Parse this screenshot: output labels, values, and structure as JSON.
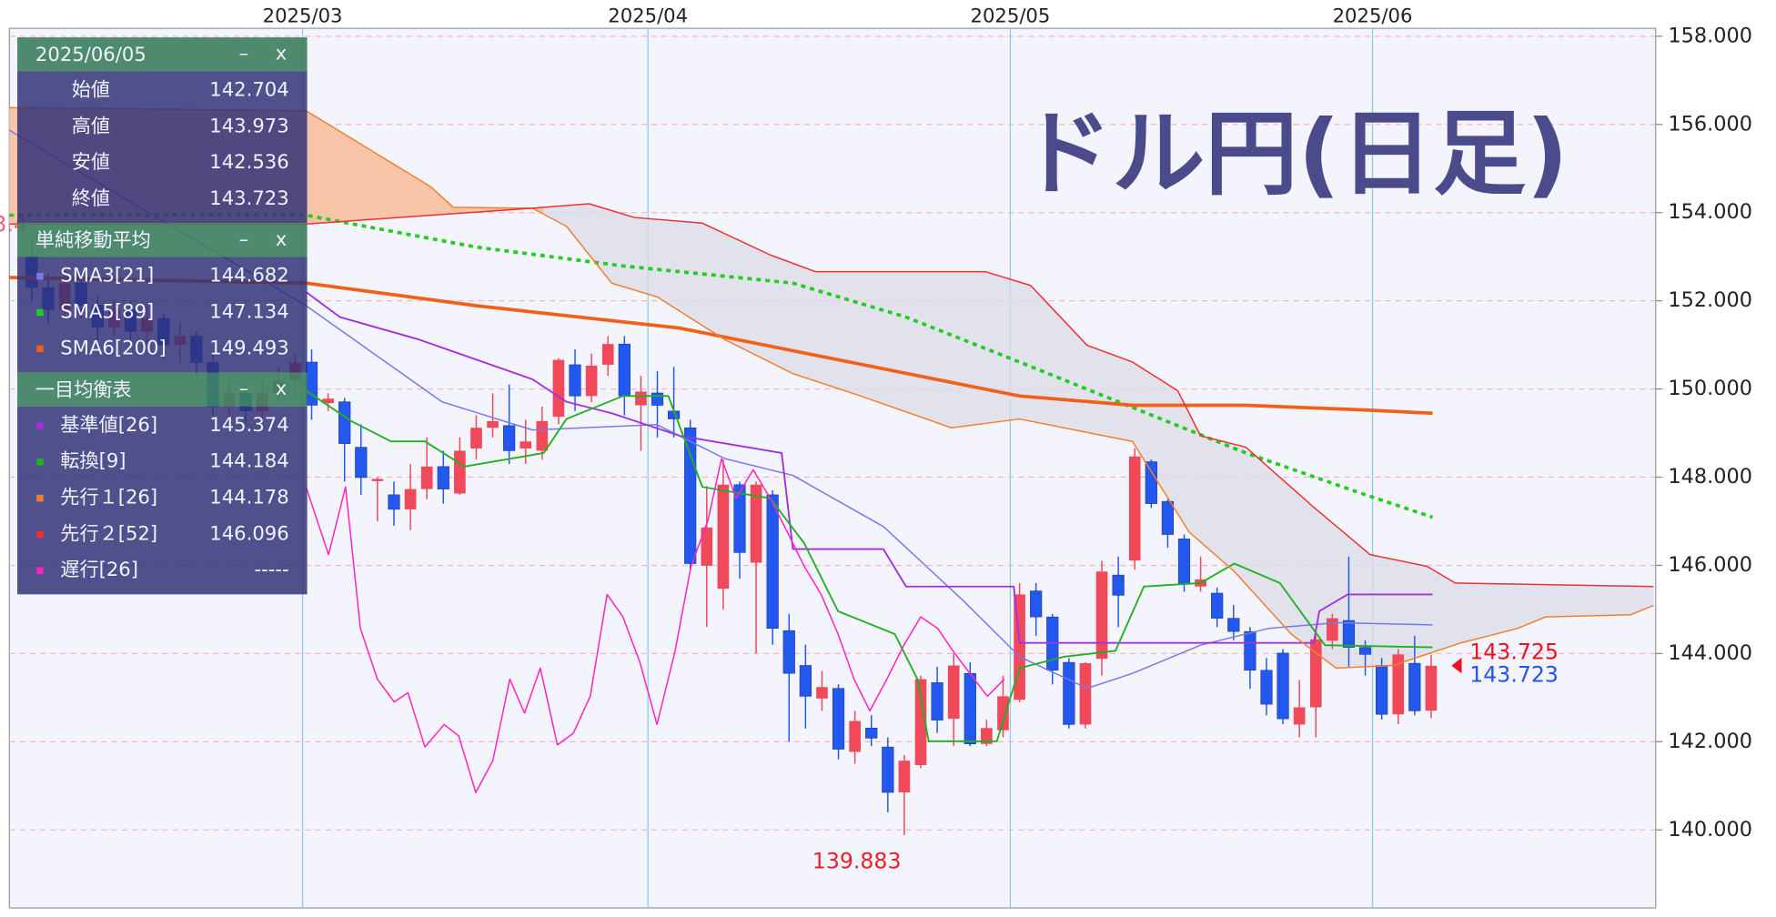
{
  "chart_data": {
    "type": "candlestick",
    "title": "ドル円(日足)",
    "selected_date": "2025/06/05",
    "panel_controls": {
      "minimize": "–",
      "close": "x"
    },
    "ohlc_labels": {
      "open": "始値",
      "high": "高値",
      "low": "安値",
      "close": "終値"
    },
    "xlim": [
      -1.36,
      98.64
    ],
    "xticks": [
      {
        "value": 16.45,
        "label": "2025/03"
      },
      {
        "value": 37.43,
        "label": "2025/04"
      },
      {
        "value": 59.44,
        "label": "2025/05"
      },
      {
        "value": 81.44,
        "label": "2025/06"
      }
    ],
    "ylim": [
      138.23,
      158.18
    ],
    "yticks": [
      {
        "value": 140,
        "label": "140.000"
      },
      {
        "value": 142,
        "label": "142.000"
      },
      {
        "value": 144,
        "label": "144.000"
      },
      {
        "value": 146,
        "label": "146.000"
      },
      {
        "value": 148,
        "label": "148.000"
      },
      {
        "value": 150,
        "label": "150.000"
      },
      {
        "value": 152,
        "label": "152.000"
      },
      {
        "value": 154,
        "label": "154.000"
      },
      {
        "value": 156,
        "label": "156.000"
      },
      {
        "value": 158,
        "label": "158.000"
      }
    ],
    "grid": true,
    "up_color": "#f04a5a",
    "down_color": "#2258ee",
    "open": [
      153.0,
      152.3,
      151.8,
      152.4,
      151.9,
      151.4,
      151.8,
      151.3,
      151.6,
      151.0,
      151.2,
      150.6,
      149.6,
      149.9,
      149.5,
      149.9,
      150.2,
      150.61,
      149.68,
      149.71,
      148.68,
      147.91,
      147.6,
      147.27,
      147.73,
      148.24,
      147.63,
      148.65,
      149.12,
      149.17,
      148.65,
      148.6,
      149.37,
      150.55,
      149.84,
      150.55,
      151.02,
      149.63,
      149.91,
      149.5,
      149.12,
      145.99,
      145.47,
      147.83,
      146.06,
      147.6,
      144.52,
      143.73,
      142.98,
      143.21,
      141.77,
      142.31,
      141.88,
      140.85,
      141.47,
      143.34,
      142.52,
      143.55,
      141.95,
      142.26,
      142.95,
      145.42,
      144.83,
      143.8,
      142.39,
      143.88,
      145.78,
      146.11,
      148.35,
      147.45,
      146.6,
      145.52,
      145.37,
      144.8,
      144.5,
      143.62,
      144.01,
      142.39,
      142.78,
      144.29,
      144.75,
      144.14,
      143.73,
      142.62,
      143.78,
      142.704
    ],
    "high": [
      153.4,
      152.6,
      152.7,
      152.6,
      152.1,
      152.0,
      152.0,
      151.9,
      151.7,
      151.5,
      151.3,
      150.8,
      150.2,
      150.1,
      150.2,
      150.5,
      150.8,
      150.9,
      149.9,
      149.8,
      149.2,
      148.0,
      147.9,
      148.3,
      148.9,
      148.6,
      148.9,
      149.4,
      149.9,
      150.1,
      149.3,
      149.6,
      150.7,
      150.9,
      150.8,
      151.2,
      151.2,
      150.3,
      150.4,
      150.5,
      149.3,
      147.8,
      148.4,
      147.9,
      147.9,
      147.7,
      144.9,
      144.2,
      143.6,
      143.3,
      142.7,
      142.6,
      142.1,
      141.7,
      143.5,
      143.7,
      144.0,
      143.8,
      142.5,
      143.5,
      145.6,
      145.6,
      144.9,
      143.9,
      143.8,
      146.1,
      146.2,
      148.652,
      148.4,
      147.5,
      146.7,
      146.2,
      145.5,
      145.1,
      144.6,
      143.9,
      144.1,
      143.4,
      144.4,
      144.9,
      146.2,
      144.3,
      143.9,
      144.1,
      144.4,
      143.973
    ],
    "low": [
      152.0,
      151.5,
      151.6,
      151.6,
      151.1,
      151.2,
      151.0,
      151.0,
      150.7,
      150.6,
      150.3,
      149.4,
      149.3,
      149.2,
      149.3,
      149.7,
      150.0,
      149.3,
      149.5,
      147.9,
      147.6,
      147.0,
      146.9,
      146.8,
      147.5,
      147.4,
      147.6,
      148.4,
      148.9,
      148.3,
      148.3,
      148.4,
      149.2,
      149.5,
      149.7,
      150.3,
      149.4,
      148.6,
      148.9,
      148.9,
      145.9,
      144.6,
      145.0,
      145.7,
      144.0,
      144.2,
      142.0,
      142.3,
      142.7,
      141.6,
      141.5,
      141.9,
      140.4,
      139.883,
      141.4,
      142.2,
      141.9,
      141.9,
      141.9,
      142.1,
      142.9,
      144.4,
      143.3,
      142.3,
      142.3,
      143.5,
      144.6,
      145.9,
      147.3,
      146.4,
      145.4,
      145.4,
      144.6,
      144.3,
      143.2,
      142.6,
      142.4,
      142.1,
      142.1,
      144.1,
      143.7,
      143.5,
      142.5,
      142.4,
      142.6,
      142.536
    ],
    "close": [
      152.3,
      151.8,
      152.4,
      151.9,
      151.4,
      151.8,
      151.3,
      151.6,
      151.0,
      151.2,
      150.6,
      149.6,
      149.9,
      149.5,
      149.9,
      150.2,
      150.6,
      149.63,
      149.78,
      148.76,
      147.99,
      147.96,
      147.27,
      147.73,
      148.24,
      147.73,
      148.6,
      149.12,
      149.27,
      148.6,
      148.81,
      149.27,
      150.66,
      149.84,
      150.53,
      151.02,
      149.84,
      149.94,
      149.63,
      149.32,
      146.04,
      146.86,
      147.83,
      146.29,
      147.83,
      144.57,
      143.55,
      143.03,
      143.24,
      141.83,
      142.47,
      142.08,
      140.85,
      141.57,
      143.42,
      142.49,
      143.73,
      141.95,
      142.31,
      143.03,
      145.34,
      144.83,
      143.62,
      142.39,
      143.78,
      145.86,
      145.32,
      148.47,
      147.4,
      146.7,
      145.57,
      145.68,
      144.8,
      144.5,
      143.62,
      142.85,
      142.52,
      142.78,
      144.32,
      144.8,
      144.14,
      143.98,
      142.62,
      143.98,
      142.7,
      143.723
    ],
    "high_label_color": "#f06474",
    "low_label_color": "#e8202e",
    "current_price": 143.725,
    "current_color": "#ee1122",
    "close_label_color": "#2255ee",
    "cloud_colors": {
      "bullish": "#f8c4a8",
      "bearish": "#dcdce8"
    },
    "indicator_groups": [
      {
        "title": "単純移動平均",
        "series": [
          {
            "name": "SMA3[21]",
            "color": "#7878ee",
            "width": 1.2,
            "legend_value": 144.682,
            "x": [
              -1.36,
              16.66,
              24.91,
              30.41,
              37.98,
              42.1,
              46.23,
              51.73,
              56.55,
              60.0,
              64.11,
              66.86,
              70.99,
              75.12,
              79.24,
              85.09
            ],
            "values": [
              155.87,
              151.89,
              149.71,
              149.07,
              149.19,
              148.42,
              148.04,
              146.88,
              145.21,
              143.93,
              143.21,
              143.55,
              144.19,
              144.57,
              144.7,
              144.65
            ]
          },
          {
            "name": "SMA5[89]",
            "color": "#22cc22",
            "width": 3,
            "dash": true,
            "legend_value": 147.134,
            "x": [
              -1.36,
              16.66,
              26.97,
              35.91,
              46.23,
              53.11,
              60.0,
              66.86,
              73.74,
              80.62,
              85.09
            ],
            "values": [
              153.94,
              153.94,
              153.22,
              152.79,
              152.4,
              151.63,
              150.61,
              149.58,
              148.55,
              147.65,
              147.09
            ]
          },
          {
            "name": "SMA6[200]",
            "color": "#f06018",
            "width": 3,
            "legend_value": 149.493,
            "x": [
              -1.36,
              16.66,
              26.97,
              39.35,
              49.67,
              60.0,
              66.86,
              73.74,
              80.62,
              85.09
            ],
            "values": [
              152.53,
              152.4,
              151.89,
              151.38,
              150.61,
              149.84,
              149.63,
              149.63,
              149.53,
              149.45
            ]
          }
        ]
      },
      {
        "title": "一目均衡表",
        "series": [
          {
            "name": "基準値[26]",
            "color": "#a030e0",
            "width": 1.5,
            "legend_value": 145.374,
            "x": [
              16.66,
              18.72,
              23.54,
              30.41,
              32.48,
              35.23,
              39.35,
              45.55,
              46.23,
              51.73,
              53.11,
              59.65,
              60.0,
              66.86,
              77.87,
              78.21,
              79.93,
              85.09
            ],
            "values": [
              152.2,
              151.63,
              151.12,
              150.22,
              149.71,
              149.45,
              148.94,
              148.55,
              146.37,
              146.37,
              145.52,
              145.52,
              144.24,
              144.24,
              144.24,
              144.96,
              145.34,
              145.34
            ]
          },
          {
            "name": "転換[9]",
            "color": "#20b020",
            "width": 1.5,
            "legend_value": 144.184,
            "x": [
              16.66,
              19.41,
              21.82,
              23.88,
              26.29,
              31.1,
              32.48,
              35.91,
              38.67,
              40.73,
              44.86,
              46.92,
              48.98,
              52.42,
              53.8,
              54.48,
              58.62,
              60.0,
              62.74,
              65.83,
              67.55,
              70.99,
              73.05,
              75.81,
              78.55,
              85.09
            ],
            "values": [
              149.96,
              149.27,
              148.81,
              148.81,
              148.24,
              148.55,
              149.32,
              149.84,
              149.84,
              147.78,
              147.52,
              146.5,
              144.96,
              144.44,
              143.42,
              142.01,
              142.01,
              143.67,
              143.93,
              144.06,
              145.52,
              145.6,
              146.04,
              145.6,
              144.19,
              144.14
            ]
          },
          {
            "name": "先行１[26]",
            "color": "#f08030",
            "width": 1.2,
            "cloud_edge": true,
            "legend_value": 144.178,
            "x": [
              -1.36,
              16.66,
              24.22,
              25.6,
              30.41,
              32.48,
              35.23,
              37.98,
              42.1,
              46.23,
              50.36,
              55.86,
              60.0,
              66.86,
              70.3,
              73.05,
              76.5,
              79.24,
              82.68,
              86.81,
              90.25,
              91.97,
              97.13,
              98.5
            ],
            "values": [
              156.38,
              156.31,
              154.59,
              154.12,
              154.1,
              153.69,
              152.4,
              152.09,
              151.12,
              150.35,
              149.84,
              149.12,
              149.32,
              148.81,
              146.76,
              145.86,
              144.44,
              143.67,
              143.73,
              144.24,
              144.57,
              144.83,
              144.88,
              145.09
            ]
          },
          {
            "name": "先行２[52]",
            "color": "#f03030",
            "width": 1.2,
            "cloud_edge": true,
            "legend_value": 146.096,
            "x": [
              -1.36,
              16.66,
              30.41,
              33.85,
              36.6,
              40.73,
              44.86,
              47.61,
              57.93,
              60.67,
              64.11,
              66.86,
              69.61,
              70.99,
              73.74,
              77.87,
              81.31,
              84.75,
              86.47,
              98.5
            ],
            "values": [
              153.74,
              153.74,
              154.1,
              154.2,
              153.89,
              153.76,
              153.04,
              152.66,
              152.66,
              152.35,
              150.99,
              150.61,
              149.96,
              148.94,
              148.68,
              147.32,
              146.24,
              145.98,
              145.6,
              145.52
            ]
          },
          {
            "name": "遅行[26]",
            "color": "#ff22c4",
            "width": 1.2,
            "legend_value": "-----",
            "x": [
              16.66,
              18.03,
              19.06,
              19.96,
              20.99,
              22.02,
              22.85,
              23.88,
              25.05,
              25.94,
              26.97,
              28.01,
              29.04,
              29.93,
              30.89,
              31.93,
              32.89,
              33.92,
              34.95,
              35.91,
              36.94,
              37.98,
              39.08,
              40.04,
              41.07,
              41.9,
              42.79,
              43.82,
              44.86,
              45.89,
              46.92,
              47.95,
              48.98,
              49.95,
              50.91,
              51.94,
              52.97,
              54.0,
              55.03,
              55.95,
              56.98,
              58.05,
              59.07
            ],
            "values": [
              147.78,
              146.24,
              147.78,
              144.57,
              143.42,
              142.9,
              143.11,
              141.88,
              142.39,
              142.13,
              140.85,
              141.57,
              143.42,
              142.65,
              143.67,
              141.93,
              142.19,
              143.03,
              145.34,
              144.83,
              143.8,
              142.39,
              144.06,
              145.98,
              147.01,
              148.42,
              147.52,
              148.17,
              147.52,
              146.76,
              145.98,
              145.34,
              144.44,
              143.42,
              142.7,
              143.42,
              144.19,
              144.83,
              144.57,
              144.06,
              143.55,
              143.03,
              143.42
            ]
          }
        ]
      }
    ]
  }
}
